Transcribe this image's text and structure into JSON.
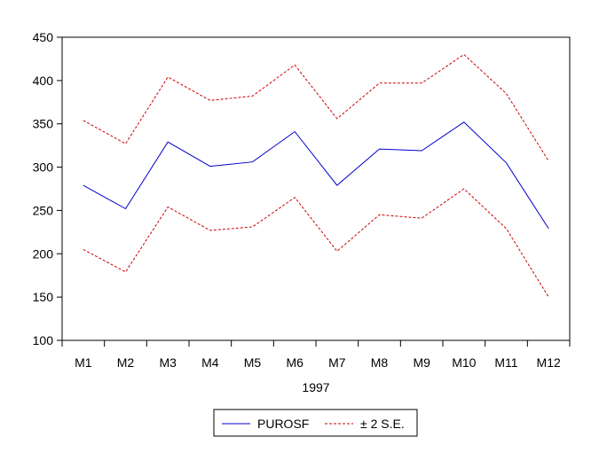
{
  "chart_data": {
    "type": "line",
    "categories": [
      "M1",
      "M2",
      "M3",
      "M4",
      "M5",
      "M6",
      "M7",
      "M8",
      "M9",
      "M10",
      "M11",
      "M12"
    ],
    "xlabel": "1997",
    "ylabel": "",
    "title": "",
    "ylim": [
      100,
      450
    ],
    "yticks": [
      100,
      150,
      200,
      250,
      300,
      350,
      400,
      450
    ],
    "grid": false,
    "legend_position": "bottom-center",
    "series": [
      {
        "name": "PUROSF",
        "color": "#0000cc",
        "style": "solid",
        "values": [
          279,
          252,
          329,
          301,
          306,
          341,
          279,
          321,
          319,
          352,
          305,
          229
        ]
      },
      {
        "name": "± 2 S.E.",
        "color": "#cc0000",
        "style": "dashed",
        "values": [
          354,
          327,
          404,
          377,
          382,
          418,
          356,
          397,
          397,
          430,
          385,
          307
        ]
      },
      {
        "name": "",
        "color": "#cc0000",
        "style": "dashed",
        "values": [
          205,
          179,
          254,
          227,
          231,
          265,
          203,
          245,
          241,
          275,
          229,
          150
        ]
      }
    ],
    "legend": [
      {
        "label": "PUROSF",
        "color": "#0000cc",
        "style": "solid"
      },
      {
        "label": "± 2 S.E.",
        "color": "#cc0000",
        "style": "dashed"
      }
    ]
  }
}
